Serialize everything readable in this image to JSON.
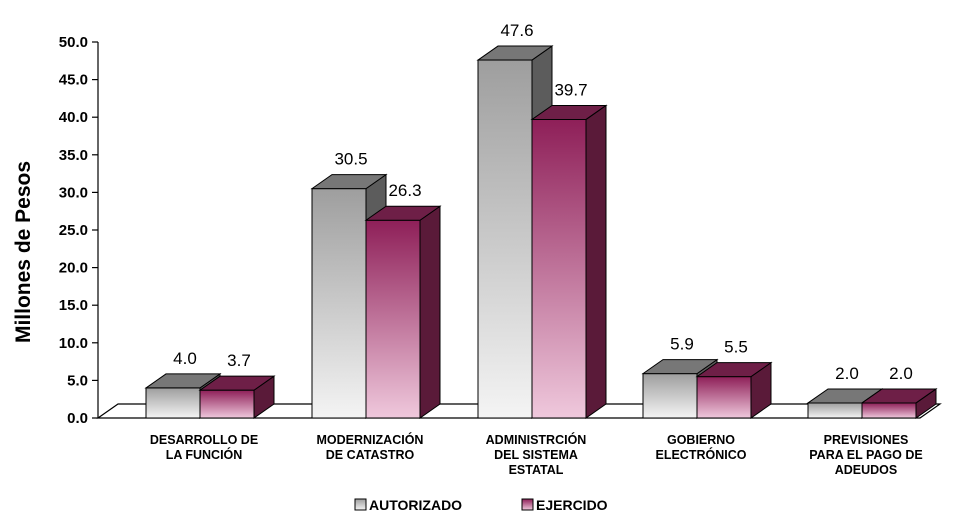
{
  "chart_data": {
    "type": "bar",
    "ylabel": "Millones de Pesos",
    "xlabel": "",
    "ylim": [
      0,
      50
    ],
    "yticks": [
      "0.0",
      "5.0",
      "10.0",
      "15.0",
      "20.0",
      "25.0",
      "30.0",
      "35.0",
      "40.0",
      "45.0",
      "50.0"
    ],
    "categories": [
      [
        "DESARROLLO DE",
        "LA FUNCIÓN"
      ],
      [
        "MODERNIZACIÓN",
        "DE CATASTRO"
      ],
      [
        "ADMINISTRCIÓN",
        "DEL SISTEMA",
        "ESTATAL"
      ],
      [
        "GOBIERNO",
        "ELECTRÓNICO"
      ],
      [
        "PREVISIONES",
        "PARA EL PAGO DE",
        "ADEUDOS"
      ]
    ],
    "series": [
      {
        "name": "AUTORIZADO",
        "values": [
          4.0,
          30.5,
          47.6,
          5.9,
          2.0
        ],
        "labels": [
          "4.0",
          "30.5",
          "47.6",
          "5.9",
          "2.0"
        ],
        "color": "#a0a0a0"
      },
      {
        "name": "EJERCIDO",
        "values": [
          3.7,
          26.3,
          39.7,
          5.5,
          2.0
        ],
        "labels": [
          "3.7",
          "26.3",
          "39.7",
          "5.5",
          "2.0"
        ],
        "color": "#9b2d62"
      }
    ],
    "legend": "bottom",
    "grid": false,
    "style": "3d-bar"
  }
}
